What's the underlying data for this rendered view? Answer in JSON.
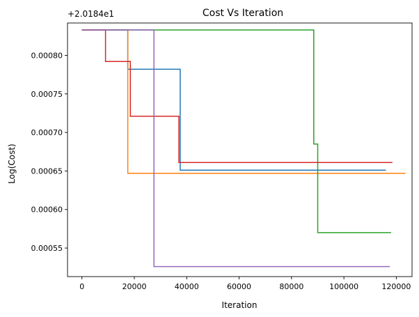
{
  "chart_data": {
    "type": "line",
    "title": "Cost Vs Iteration",
    "xlabel": "Iteration",
    "ylabel": "Log(Cost)",
    "offset_label": "+2.0184e1",
    "xlim": [
      -5500,
      126000
    ],
    "ylim": [
      0.000513,
      0.000842
    ],
    "x_ticks": [
      0,
      20000,
      40000,
      60000,
      80000,
      100000,
      120000
    ],
    "x_tick_labels": [
      "0",
      "20000",
      "40000",
      "60000",
      "80000",
      "100000",
      "120000"
    ],
    "y_ticks": [
      0.00055,
      0.0006,
      0.00065,
      0.0007,
      0.00075,
      0.0008
    ],
    "y_tick_labels": [
      "0.00055",
      "0.00060",
      "0.00065",
      "0.00070",
      "0.00075",
      "0.00080"
    ],
    "grid": false,
    "series": [
      {
        "color": "#1f77b4",
        "points": [
          [
            0,
            0.000833
          ],
          [
            17500,
            0.000833
          ],
          [
            17500,
            0.000782
          ],
          [
            37500,
            0.000782
          ],
          [
            37500,
            0.000651
          ],
          [
            116000,
            0.000651
          ]
        ]
      },
      {
        "color": "#ff7f0e",
        "points": [
          [
            0,
            0.000833
          ],
          [
            17500,
            0.000833
          ],
          [
            17500,
            0.000647
          ],
          [
            123500,
            0.000647
          ]
        ]
      },
      {
        "color": "#2ca02c",
        "points": [
          [
            0,
            0.000833
          ],
          [
            88500,
            0.000833
          ],
          [
            88500,
            0.000685
          ],
          [
            90000,
            0.000685
          ],
          [
            90000,
            0.00057
          ],
          [
            118000,
            0.00057
          ]
        ]
      },
      {
        "color": "#d62728",
        "points": [
          [
            0,
            0.000833
          ],
          [
            9000,
            0.000833
          ],
          [
            9000,
            0.000792
          ],
          [
            18500,
            0.000792
          ],
          [
            18500,
            0.000721
          ],
          [
            37000,
            0.000721
          ],
          [
            37000,
            0.000661
          ],
          [
            118500,
            0.000661
          ]
        ]
      },
      {
        "color": "#9467bd",
        "points": [
          [
            0,
            0.000833
          ],
          [
            27500,
            0.000833
          ],
          [
            27500,
            0.000526
          ],
          [
            117500,
            0.000526
          ]
        ]
      }
    ]
  }
}
